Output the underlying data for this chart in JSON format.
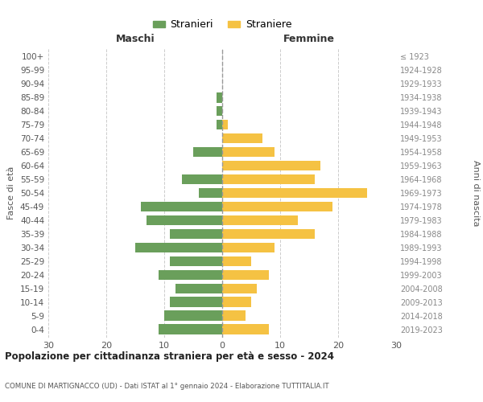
{
  "age_groups": [
    "0-4",
    "5-9",
    "10-14",
    "15-19",
    "20-24",
    "25-29",
    "30-34",
    "35-39",
    "40-44",
    "45-49",
    "50-54",
    "55-59",
    "60-64",
    "65-69",
    "70-74",
    "75-79",
    "80-84",
    "85-89",
    "90-94",
    "95-99",
    "100+"
  ],
  "birth_years": [
    "2019-2023",
    "2014-2018",
    "2009-2013",
    "2004-2008",
    "1999-2003",
    "1994-1998",
    "1989-1993",
    "1984-1988",
    "1979-1983",
    "1974-1978",
    "1969-1973",
    "1964-1968",
    "1959-1963",
    "1954-1958",
    "1949-1953",
    "1944-1948",
    "1939-1943",
    "1934-1938",
    "1929-1933",
    "1924-1928",
    "≤ 1923"
  ],
  "maschi": [
    11,
    10,
    9,
    8,
    11,
    9,
    15,
    9,
    13,
    14,
    4,
    7,
    0,
    5,
    0,
    1,
    1,
    1,
    0,
    0,
    0
  ],
  "femmine": [
    8,
    4,
    5,
    6,
    8,
    5,
    9,
    16,
    13,
    19,
    25,
    16,
    17,
    9,
    7,
    1,
    0,
    0,
    0,
    0,
    0
  ],
  "color_maschi": "#6a9f5b",
  "color_femmine": "#f5c243",
  "title": "Popolazione per cittadinanza straniera per età e sesso - 2024",
  "subtitle": "COMUNE DI MARTIGNACCO (UD) - Dati ISTAT al 1° gennaio 2024 - Elaborazione TUTTITALIA.IT",
  "xlabel_left": "Maschi",
  "xlabel_right": "Femmine",
  "ylabel_left": "Fasce di età",
  "ylabel_right": "Anni di nascita",
  "legend_maschi": "Stranieri",
  "legend_femmine": "Straniere",
  "xlim": 30,
  "background_color": "#ffffff",
  "grid_color": "#cccccc"
}
